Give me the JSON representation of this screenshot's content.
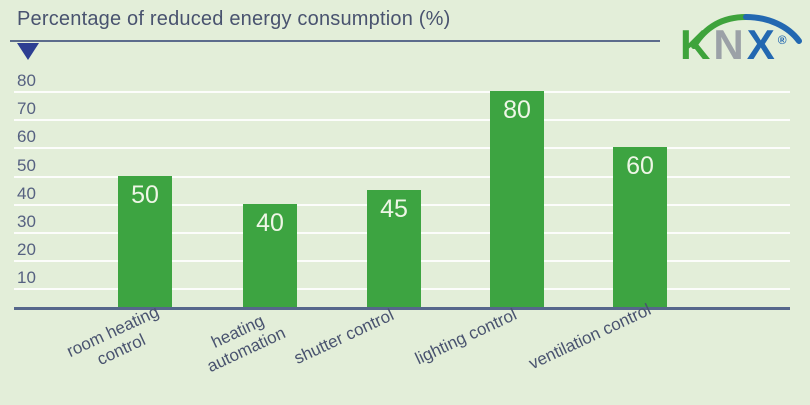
{
  "header": {
    "title": "Percentage of reduced energy consumption (%)"
  },
  "logo": {
    "name": "KNX",
    "letters": [
      {
        "char": "K",
        "color": "#3ea33b"
      },
      {
        "char": "N",
        "color": "#9ba1a7"
      },
      {
        "char": "X",
        "color": "#2368b1"
      }
    ],
    "registered_mark": "®",
    "arc_left_color": "#3ea33b",
    "arc_right_color": "#2368b1"
  },
  "chart_data": {
    "type": "bar",
    "title": "Percentage of reduced energy consumption (%)",
    "categories": [
      "room heating\ncontrol",
      "heating\nautomation",
      "shutter control",
      "lighting control",
      "ventilation control"
    ],
    "values": [
      50,
      40,
      45,
      80,
      60
    ],
    "data_labels": [
      "50",
      "40",
      "45",
      "80",
      "60"
    ],
    "yticks": [
      10,
      20,
      30,
      40,
      50,
      60,
      70,
      80
    ],
    "ylim": [
      0,
      88
    ],
    "xlabel": "",
    "ylabel": "",
    "grid": "horizontal-white",
    "legend": "none",
    "background_color": "#e3eed9",
    "bar_color": "#3da441",
    "value_label_color": "#eef6e6",
    "text_color": "#49536f",
    "axis_line_color": "#56678b",
    "arrow_color": "#2c3e92"
  }
}
